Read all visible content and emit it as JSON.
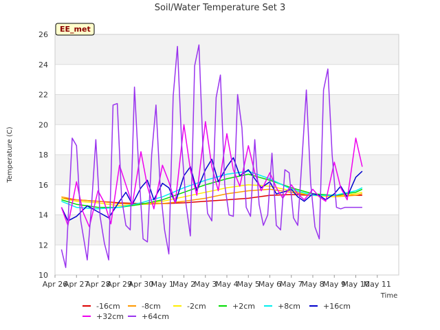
{
  "chart_data": {
    "type": "line",
    "title": "Soil/Water Temperature Set 3",
    "xlabel": "Time",
    "ylabel": "Temperature (C)",
    "station_label": "EE_met",
    "xlim": [
      0,
      16
    ],
    "ylim": [
      10,
      26
    ],
    "x_ticks": [
      {
        "v": 0,
        "label": "Apr 26"
      },
      {
        "v": 1,
        "label": "Apr 27"
      },
      {
        "v": 2,
        "label": "Apr 28"
      },
      {
        "v": 3,
        "label": "Apr 29"
      },
      {
        "v": 4,
        "label": "Apr 30"
      },
      {
        "v": 5,
        "label": "May 1"
      },
      {
        "v": 6,
        "label": "May 2"
      },
      {
        "v": 7,
        "label": "May 3"
      },
      {
        "v": 8,
        "label": "May 4"
      },
      {
        "v": 9,
        "label": "May 5"
      },
      {
        "v": 10,
        "label": "May 6"
      },
      {
        "v": 11,
        "label": "May 7"
      },
      {
        "v": 12,
        "label": "May 8"
      },
      {
        "v": 13,
        "label": "May 9"
      },
      {
        "v": 14,
        "label": "May 10"
      },
      {
        "v": 15,
        "label": "May 11"
      }
    ],
    "y_ticks": [
      10,
      12,
      14,
      16,
      18,
      20,
      22,
      24,
      26
    ],
    "grid": true,
    "legend_placement": "bottom",
    "series": [
      {
        "name": "-16cm",
        "color": "#dd0000",
        "x": [
          0.3,
          1,
          2,
          3,
          4,
          5,
          6,
          7,
          8,
          9,
          10,
          11,
          12,
          13,
          14,
          14.3
        ],
        "y": [
          15.1,
          15.0,
          14.9,
          14.8,
          14.75,
          14.75,
          14.8,
          14.9,
          15.0,
          15.1,
          15.3,
          15.35,
          15.3,
          15.3,
          15.3,
          15.3
        ]
      },
      {
        "name": "-8cm",
        "color": "#ff9900",
        "x": [
          0.3,
          1,
          2,
          3,
          4,
          5,
          6,
          7,
          8,
          9,
          10,
          11,
          12,
          13,
          14,
          14.3
        ],
        "y": [
          15.2,
          15.0,
          14.9,
          14.75,
          14.7,
          14.75,
          14.9,
          15.1,
          15.4,
          15.6,
          15.7,
          15.5,
          15.3,
          15.2,
          15.3,
          15.4
        ]
      },
      {
        "name": "-2cm",
        "color": "#ffee00",
        "x": [
          0.3,
          1,
          2,
          3,
          4,
          5,
          6,
          7,
          8,
          9,
          10,
          11,
          12,
          13,
          14,
          14.3
        ],
        "y": [
          15.1,
          14.9,
          14.8,
          14.6,
          14.7,
          14.9,
          15.2,
          15.5,
          15.8,
          16.0,
          15.9,
          15.6,
          15.3,
          15.2,
          15.4,
          15.5
        ]
      },
      {
        "name": "+2cm",
        "color": "#00dd00",
        "x": [
          0.3,
          1,
          2,
          3,
          4,
          5,
          6,
          7,
          8,
          9,
          10,
          11,
          12,
          13,
          14,
          14.3
        ],
        "y": [
          15.0,
          14.7,
          14.5,
          14.5,
          14.7,
          15.0,
          15.5,
          16.0,
          16.4,
          16.7,
          16.3,
          15.8,
          15.4,
          15.3,
          15.5,
          15.7
        ]
      },
      {
        "name": "+8cm",
        "color": "#00eeee",
        "x": [
          0.3,
          1,
          2,
          3,
          4,
          5,
          6,
          7,
          8,
          9,
          10,
          11,
          12,
          13,
          14,
          14.3
        ],
        "y": [
          14.9,
          14.5,
          14.4,
          14.5,
          14.8,
          15.2,
          15.8,
          16.3,
          16.7,
          16.9,
          16.4,
          15.7,
          15.3,
          15.3,
          15.6,
          15.8
        ]
      },
      {
        "name": "+16cm",
        "color": "#0000cc",
        "x": [
          0.3,
          0.6,
          1,
          1.5,
          2,
          2.5,
          3,
          3.3,
          3.6,
          4,
          4.3,
          4.6,
          5,
          5.3,
          5.6,
          6,
          6.3,
          6.6,
          7,
          7.3,
          7.6,
          8,
          8.3,
          8.6,
          9,
          9.3,
          9.6,
          10,
          10.3,
          10.6,
          11,
          11.3,
          11.6,
          12,
          12.3,
          12.6,
          13,
          13.3,
          13.6,
          14,
          14.3
        ],
        "y": [
          14.5,
          13.6,
          13.9,
          14.6,
          14.2,
          13.8,
          14.9,
          15.5,
          14.7,
          15.8,
          16.3,
          15.0,
          16.1,
          15.8,
          14.8,
          16.6,
          17.2,
          15.6,
          17.0,
          17.7,
          16.2,
          17.2,
          17.8,
          16.6,
          17.0,
          16.4,
          15.8,
          16.2,
          15.4,
          15.5,
          15.7,
          15.2,
          14.9,
          15.4,
          15.3,
          15.0,
          15.4,
          15.9,
          15.2,
          16.5,
          16.9
        ]
      },
      {
        "name": "+32cm",
        "color": "#ee00ee",
        "x": [
          0.3,
          0.6,
          1,
          1.3,
          1.6,
          2,
          2.3,
          2.6,
          3,
          3.3,
          3.6,
          4,
          4.3,
          4.6,
          5,
          5.3,
          5.6,
          6,
          6.3,
          6.6,
          7,
          7.3,
          7.6,
          8,
          8.3,
          8.6,
          9,
          9.3,
          9.6,
          10,
          10.3,
          10.6,
          11,
          11.3,
          11.6,
          12,
          12.3,
          12.6,
          13,
          13.3,
          13.6,
          14,
          14.3
        ],
        "y": [
          14.5,
          13.3,
          16.2,
          14.2,
          13.2,
          15.6,
          14.8,
          13.4,
          17.3,
          16.0,
          14.7,
          18.2,
          15.9,
          14.4,
          17.3,
          16.2,
          14.8,
          20.0,
          17.0,
          15.3,
          20.2,
          17.2,
          15.6,
          19.4,
          17.0,
          15.9,
          18.6,
          16.8,
          15.6,
          16.8,
          15.8,
          15.1,
          16.0,
          15.4,
          15.0,
          15.7,
          15.2,
          14.9,
          17.5,
          15.8,
          15.0,
          19.1,
          17.2
        ]
      },
      {
        "name": "+64cm",
        "color": "#9933ee",
        "x": [
          0.3,
          0.5,
          0.8,
          1,
          1.2,
          1.5,
          1.7,
          1.9,
          2.1,
          2.3,
          2.5,
          2.7,
          2.9,
          3.1,
          3.3,
          3.5,
          3.7,
          3.9,
          4.1,
          4.3,
          4.5,
          4.7,
          4.9,
          5.1,
          5.3,
          5.5,
          5.7,
          5.9,
          6.1,
          6.3,
          6.5,
          6.7,
          6.9,
          7.1,
          7.3,
          7.5,
          7.7,
          7.9,
          8.1,
          8.3,
          8.5,
          8.7,
          8.9,
          9.1,
          9.3,
          9.5,
          9.7,
          9.9,
          10.1,
          10.3,
          10.5,
          10.7,
          10.9,
          11.1,
          11.3,
          11.5,
          11.7,
          11.9,
          12.1,
          12.3,
          12.5,
          12.7,
          12.9,
          13.1,
          13.3,
          13.5,
          13.7,
          13.9,
          14.1,
          14.3
        ],
        "y": [
          11.7,
          10.5,
          19.1,
          18.6,
          13.6,
          11.0,
          14.6,
          19.0,
          13.9,
          12.1,
          11.0,
          21.3,
          21.4,
          15.1,
          13.3,
          13.0,
          22.5,
          17.0,
          12.4,
          12.2,
          18.0,
          21.3,
          15.8,
          13.0,
          11.4,
          21.9,
          25.2,
          18.6,
          14.7,
          12.6,
          23.9,
          25.3,
          18.0,
          14.1,
          13.6,
          21.8,
          23.3,
          16.0,
          14.0,
          13.9,
          22.0,
          19.8,
          14.5,
          13.9,
          19.0,
          14.7,
          13.3,
          14.0,
          18.1,
          13.3,
          13.0,
          17.0,
          16.8,
          13.8,
          13.3,
          17.8,
          22.3,
          16.1,
          13.2,
          12.4,
          22.3,
          23.7,
          18.0,
          14.5,
          14.4,
          14.5,
          14.5,
          14.5,
          14.5,
          14.5
        ]
      }
    ]
  }
}
